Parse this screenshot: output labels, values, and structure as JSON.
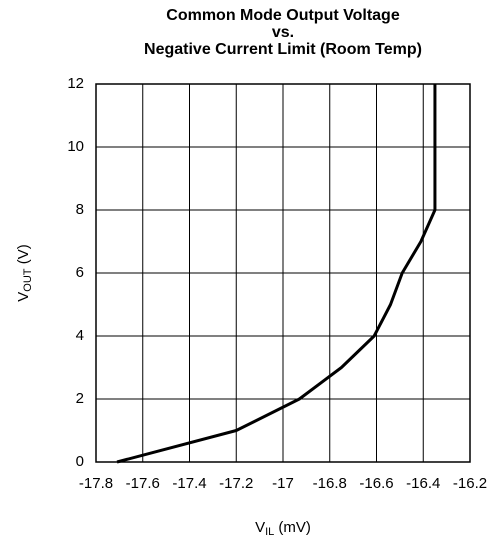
{
  "chart_data": {
    "type": "line",
    "title": [
      "Common Mode Output Voltage",
      "vs.",
      "Negative Current Limit (Room Temp)"
    ],
    "ylabel": [
      "V",
      "OUT",
      " (V)"
    ],
    "xlabel": [
      "V",
      "IL",
      " (mV)"
    ],
    "x": [
      -17.71,
      -17.2,
      -16.93,
      -16.75,
      -16.61,
      -16.54,
      -16.49,
      -16.41,
      -16.35,
      -16.35
    ],
    "series": [
      {
        "color": "#000000",
        "values": [
          0,
          1,
          2,
          3,
          4,
          5,
          6,
          7,
          8,
          12
        ]
      }
    ],
    "xlim": [
      -17.8,
      -16.2
    ],
    "xticks": [
      -17.8,
      -17.6,
      -17.4,
      -17.2,
      -17,
      -16.8,
      -16.6,
      -16.4,
      -16.2
    ],
    "ylim": [
      0,
      12
    ],
    "yticks": [
      0,
      2,
      4,
      6,
      8,
      10,
      12
    ],
    "grid": true
  }
}
